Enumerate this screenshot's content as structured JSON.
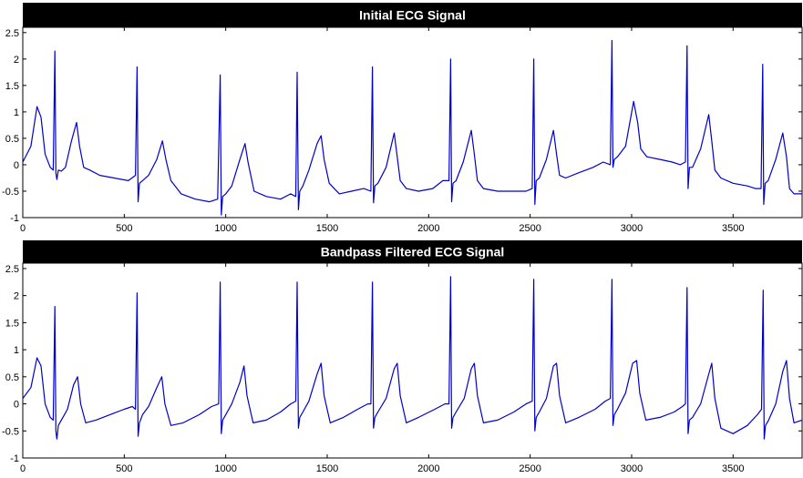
{
  "chart_data": [
    {
      "type": "line",
      "title": "Initial ECG Signal",
      "xlabel": "",
      "ylabel": "",
      "xlim": [
        0,
        3840
      ],
      "ylim": [
        -1,
        2.6
      ],
      "xticks": [
        0,
        500,
        1000,
        1500,
        2000,
        2500,
        3000,
        3500
      ],
      "yticks": [
        -1,
        -0.5,
        0,
        0.5,
        1,
        1.5,
        2,
        2.5
      ],
      "xtick_labels": [
        "0",
        "500",
        "1000",
        "1500",
        "2000",
        "2500",
        "3000",
        "3500"
      ],
      "ytick_labels": [
        "-1",
        "-0.5",
        "0",
        "0.5",
        "1",
        "1.5",
        "2",
        "2.5"
      ],
      "grid": false,
      "color": "#0000cc",
      "series": [
        {
          "x": [
            0,
            40,
            70,
            90,
            110,
            135,
            150,
            158,
            163,
            168,
            175,
            190,
            210,
            240,
            265,
            280,
            300,
            330,
            380,
            450,
            520,
            555,
            563,
            568,
            575,
            590,
            620,
            660,
            688,
            705,
            730,
            780,
            850,
            920,
            960,
            973,
            978,
            985,
            1000,
            1030,
            1070,
            1095,
            1110,
            1140,
            1200,
            1270,
            1320,
            1345,
            1352,
            1358,
            1365,
            1380,
            1410,
            1450,
            1470,
            1485,
            1510,
            1560,
            1620,
            1680,
            1715,
            1723,
            1728,
            1735,
            1750,
            1790,
            1830,
            1845,
            1860,
            1890,
            1950,
            2020,
            2070,
            2100,
            2108,
            2113,
            2120,
            2135,
            2170,
            2210,
            2225,
            2240,
            2270,
            2340,
            2420,
            2480,
            2510,
            2518,
            2523,
            2530,
            2545,
            2580,
            2615,
            2630,
            2645,
            2675,
            2740,
            2810,
            2860,
            2895,
            2903,
            2908,
            2915,
            2930,
            2970,
            3010,
            3030,
            3045,
            3075,
            3140,
            3200,
            3240,
            3265,
            3273,
            3278,
            3285,
            3300,
            3340,
            3380,
            3395,
            3410,
            3440,
            3500,
            3570,
            3610,
            3638,
            3646,
            3651,
            3658,
            3673,
            3710,
            3745,
            3763,
            3778,
            3800,
            3840
          ],
          "y": [
            0.05,
            0.35,
            1.1,
            0.9,
            0.2,
            -0.05,
            -0.1,
            2.15,
            -0.15,
            -0.28,
            -0.1,
            -0.12,
            -0.05,
            0.45,
            0.8,
            0.35,
            -0.05,
            -0.1,
            -0.2,
            -0.25,
            -0.3,
            -0.2,
            1.85,
            -0.7,
            -0.35,
            -0.3,
            -0.2,
            0.1,
            0.45,
            0.1,
            -0.3,
            -0.55,
            -0.65,
            -0.7,
            -0.65,
            1.7,
            -0.95,
            -0.6,
            -0.55,
            -0.4,
            0.1,
            0.4,
            0.05,
            -0.5,
            -0.6,
            -0.65,
            -0.55,
            -0.6,
            1.75,
            -0.85,
            -0.5,
            -0.4,
            -0.1,
            0.4,
            0.55,
            0.1,
            -0.35,
            -0.55,
            -0.5,
            -0.45,
            -0.5,
            1.85,
            -0.72,
            -0.4,
            -0.35,
            -0.05,
            0.6,
            0.15,
            -0.3,
            -0.45,
            -0.5,
            -0.45,
            -0.3,
            -0.3,
            2.0,
            -0.7,
            -0.35,
            -0.3,
            0.05,
            0.65,
            0.2,
            -0.3,
            -0.45,
            -0.5,
            -0.5,
            -0.5,
            -0.45,
            2.0,
            -0.75,
            -0.3,
            -0.25,
            0.1,
            0.65,
            0.2,
            -0.2,
            -0.25,
            -0.15,
            -0.05,
            0.05,
            0.0,
            2.35,
            -0.05,
            0.1,
            0.15,
            0.35,
            1.2,
            0.8,
            0.3,
            0.15,
            0.1,
            0.05,
            0.0,
            0.05,
            2.25,
            -0.45,
            -0.05,
            -0.05,
            0.3,
            0.95,
            0.45,
            -0.1,
            -0.25,
            -0.35,
            -0.4,
            -0.45,
            -0.45,
            1.9,
            -0.75,
            -0.35,
            -0.3,
            0.1,
            0.6,
            0.15,
            -0.45,
            -0.55,
            -0.55
          ]
        }
      ]
    },
    {
      "type": "line",
      "title": "Bandpass Filtered ECG Signal",
      "xlabel": "",
      "ylabel": "",
      "xlim": [
        0,
        3840
      ],
      "ylim": [
        -1,
        2.6
      ],
      "xticks": [
        0,
        500,
        1000,
        1500,
        2000,
        2500,
        3000,
        3500
      ],
      "yticks": [
        -1,
        -0.5,
        0,
        0.5,
        1,
        1.5,
        2,
        2.5
      ],
      "xtick_labels": [
        "0",
        "500",
        "1000",
        "1500",
        "2000",
        "2500",
        "3000",
        "3500"
      ],
      "ytick_labels": [
        "-1",
        "-0.5",
        "0",
        "0.5",
        "1",
        "1.5",
        "2",
        "2.5"
      ],
      "grid": false,
      "color": "#0000cc",
      "series": [
        {
          "x": [
            0,
            40,
            70,
            90,
            110,
            135,
            150,
            158,
            163,
            168,
            175,
            190,
            220,
            250,
            270,
            285,
            310,
            360,
            430,
            500,
            540,
            555,
            563,
            568,
            575,
            590,
            620,
            660,
            685,
            700,
            730,
            790,
            870,
            930,
            965,
            973,
            978,
            985,
            1000,
            1030,
            1070,
            1090,
            1105,
            1135,
            1200,
            1270,
            1320,
            1345,
            1352,
            1358,
            1365,
            1380,
            1410,
            1450,
            1470,
            1485,
            1515,
            1580,
            1650,
            1700,
            1715,
            1723,
            1728,
            1735,
            1750,
            1790,
            1830,
            1845,
            1860,
            1890,
            1950,
            2030,
            2080,
            2100,
            2108,
            2113,
            2120,
            2135,
            2175,
            2210,
            2225,
            2240,
            2270,
            2340,
            2420,
            2480,
            2510,
            2518,
            2523,
            2530,
            2545,
            2580,
            2615,
            2630,
            2645,
            2675,
            2740,
            2820,
            2870,
            2895,
            2903,
            2908,
            2915,
            2930,
            2970,
            3005,
            3025,
            3040,
            3070,
            3140,
            3210,
            3250,
            3265,
            3273,
            3278,
            3285,
            3300,
            3340,
            3380,
            3395,
            3410,
            3440,
            3500,
            3570,
            3620,
            3640,
            3648,
            3653,
            3660,
            3675,
            3710,
            3745,
            3763,
            3778,
            3800,
            3840
          ],
          "y": [
            0.1,
            0.3,
            0.85,
            0.7,
            0.0,
            -0.25,
            -0.3,
            1.8,
            -0.5,
            -0.65,
            -0.4,
            -0.3,
            -0.1,
            0.35,
            0.5,
            0.0,
            -0.35,
            -0.3,
            -0.2,
            -0.1,
            -0.05,
            -0.1,
            2.05,
            -0.6,
            -0.35,
            -0.2,
            -0.05,
            0.3,
            0.5,
            0.0,
            -0.4,
            -0.35,
            -0.2,
            -0.05,
            0.0,
            2.25,
            -0.55,
            -0.3,
            -0.2,
            0.0,
            0.4,
            0.7,
            0.15,
            -0.35,
            -0.3,
            -0.15,
            0.0,
            0.05,
            2.25,
            -0.45,
            -0.25,
            -0.15,
            0.05,
            0.55,
            0.75,
            0.15,
            -0.35,
            -0.25,
            -0.1,
            0.0,
            0.0,
            2.25,
            -0.45,
            -0.25,
            -0.15,
            0.1,
            0.65,
            0.75,
            0.15,
            -0.35,
            -0.25,
            -0.1,
            0.0,
            0.0,
            2.35,
            -0.45,
            -0.25,
            -0.15,
            0.1,
            0.65,
            0.75,
            0.15,
            -0.35,
            -0.3,
            -0.15,
            0.0,
            0.05,
            2.3,
            -0.5,
            -0.25,
            -0.15,
            0.1,
            0.7,
            0.75,
            0.15,
            -0.35,
            -0.25,
            -0.1,
            0.05,
            0.1,
            2.3,
            -0.4,
            -0.2,
            -0.1,
            0.2,
            0.75,
            0.8,
            0.2,
            -0.3,
            -0.25,
            -0.15,
            -0.05,
            0.0,
            2.15,
            -0.55,
            -0.3,
            -0.25,
            0.0,
            0.55,
            0.75,
            0.1,
            -0.45,
            -0.55,
            -0.4,
            -0.2,
            -0.1,
            2.1,
            -0.65,
            -0.4,
            -0.3,
            0.0,
            0.6,
            0.8,
            0.1,
            -0.35,
            -0.3
          ]
        }
      ]
    }
  ]
}
